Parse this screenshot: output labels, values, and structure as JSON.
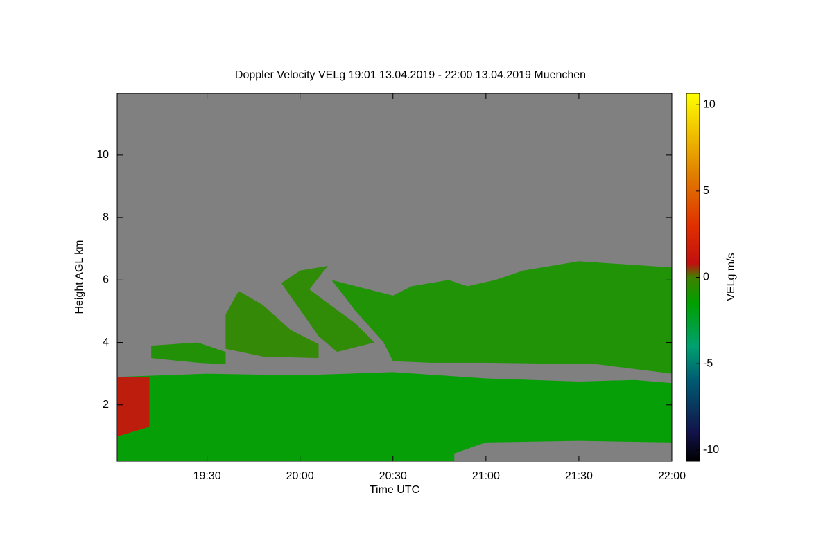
{
  "chart_data": {
    "type": "time-height",
    "title": "Doppler Velocity VELg   19:01 13.04.2019 - 22:00 13.04.2019 Muenchen",
    "x_label": "Time UTC",
    "y_label": "Height AGL km",
    "background": "#808080",
    "xlim": [
      19.0167,
      22.0
    ],
    "xticks": [
      {
        "value": 19.5,
        "label": "19:30"
      },
      {
        "value": 20.0,
        "label": "20:00"
      },
      {
        "value": 20.5,
        "label": "20:30"
      },
      {
        "value": 21.0,
        "label": "21:00"
      },
      {
        "value": 21.5,
        "label": "21:30"
      },
      {
        "value": 22.0,
        "label": "22:00"
      }
    ],
    "ylim": [
      0.2,
      11.97
    ],
    "yticks": [
      2,
      4,
      6,
      8,
      10
    ],
    "colorbar": {
      "label": "VELg m/s",
      "lim": [
        -10.65,
        10.65
      ],
      "ticks": [
        10,
        5,
        0,
        -5,
        -10
      ],
      "colormap": [
        {
          "value": -10.65,
          "color": "#000000"
        },
        {
          "value": -9,
          "color": "#12124a"
        },
        {
          "value": -6,
          "color": "#005a72"
        },
        {
          "value": -4,
          "color": "#00a070"
        },
        {
          "value": -1.5,
          "color": "#00a000"
        },
        {
          "value": 0,
          "color": "#408000"
        },
        {
          "value": 0.8,
          "color": "#c01010"
        },
        {
          "value": 3,
          "color": "#e03000"
        },
        {
          "value": 6,
          "color": "#e08000"
        },
        {
          "value": 10.65,
          "color": "#ffff00"
        }
      ]
    },
    "regions": [
      {
        "value": -1.5,
        "x": [
          19.02,
          19.5,
          20.0,
          20.5,
          21.0,
          21.5,
          21.8,
          22.0,
          22.0,
          21.5,
          21.0,
          20.83,
          20.83,
          19.02
        ],
        "y": [
          2.9,
          3.0,
          2.95,
          3.05,
          2.85,
          2.75,
          2.8,
          2.7,
          0.8,
          0.85,
          0.8,
          0.45,
          0.2,
          0.2
        ]
      },
      {
        "value": 1.2,
        "x": [
          19.02,
          19.19,
          19.19,
          19.02
        ],
        "y": [
          2.9,
          2.9,
          1.3,
          1.0
        ]
      },
      {
        "value": -0.8,
        "x": [
          19.2,
          19.45,
          19.6,
          19.6,
          19.45,
          19.2
        ],
        "y": [
          3.9,
          4.0,
          3.7,
          3.3,
          3.35,
          3.5
        ]
      },
      {
        "value": -0.4,
        "x": [
          19.6,
          19.67,
          19.8,
          19.95,
          20.1,
          20.1,
          19.8,
          19.6
        ],
        "y": [
          4.9,
          5.65,
          5.2,
          4.4,
          3.95,
          3.5,
          3.55,
          3.8
        ]
      },
      {
        "value": -0.5,
        "x": [
          19.9,
          20.0,
          20.15,
          20.05,
          20.3,
          20.4,
          20.2,
          20.1
        ],
        "y": [
          5.9,
          6.3,
          6.45,
          5.7,
          4.6,
          4.0,
          3.7,
          4.2
        ]
      },
      {
        "value": -0.9,
        "x": [
          20.17,
          20.3,
          20.5,
          20.6,
          20.8,
          20.9,
          21.05,
          21.2,
          21.5,
          21.75,
          22.0,
          22.0,
          21.8,
          21.6,
          21.0,
          20.7,
          20.5,
          20.45,
          20.3
        ],
        "y": [
          6.0,
          5.8,
          5.5,
          5.8,
          6.0,
          5.8,
          6.0,
          6.3,
          6.6,
          6.5,
          6.4,
          3.0,
          3.15,
          3.3,
          3.35,
          3.35,
          3.4,
          4.0,
          5.0
        ]
      }
    ]
  }
}
